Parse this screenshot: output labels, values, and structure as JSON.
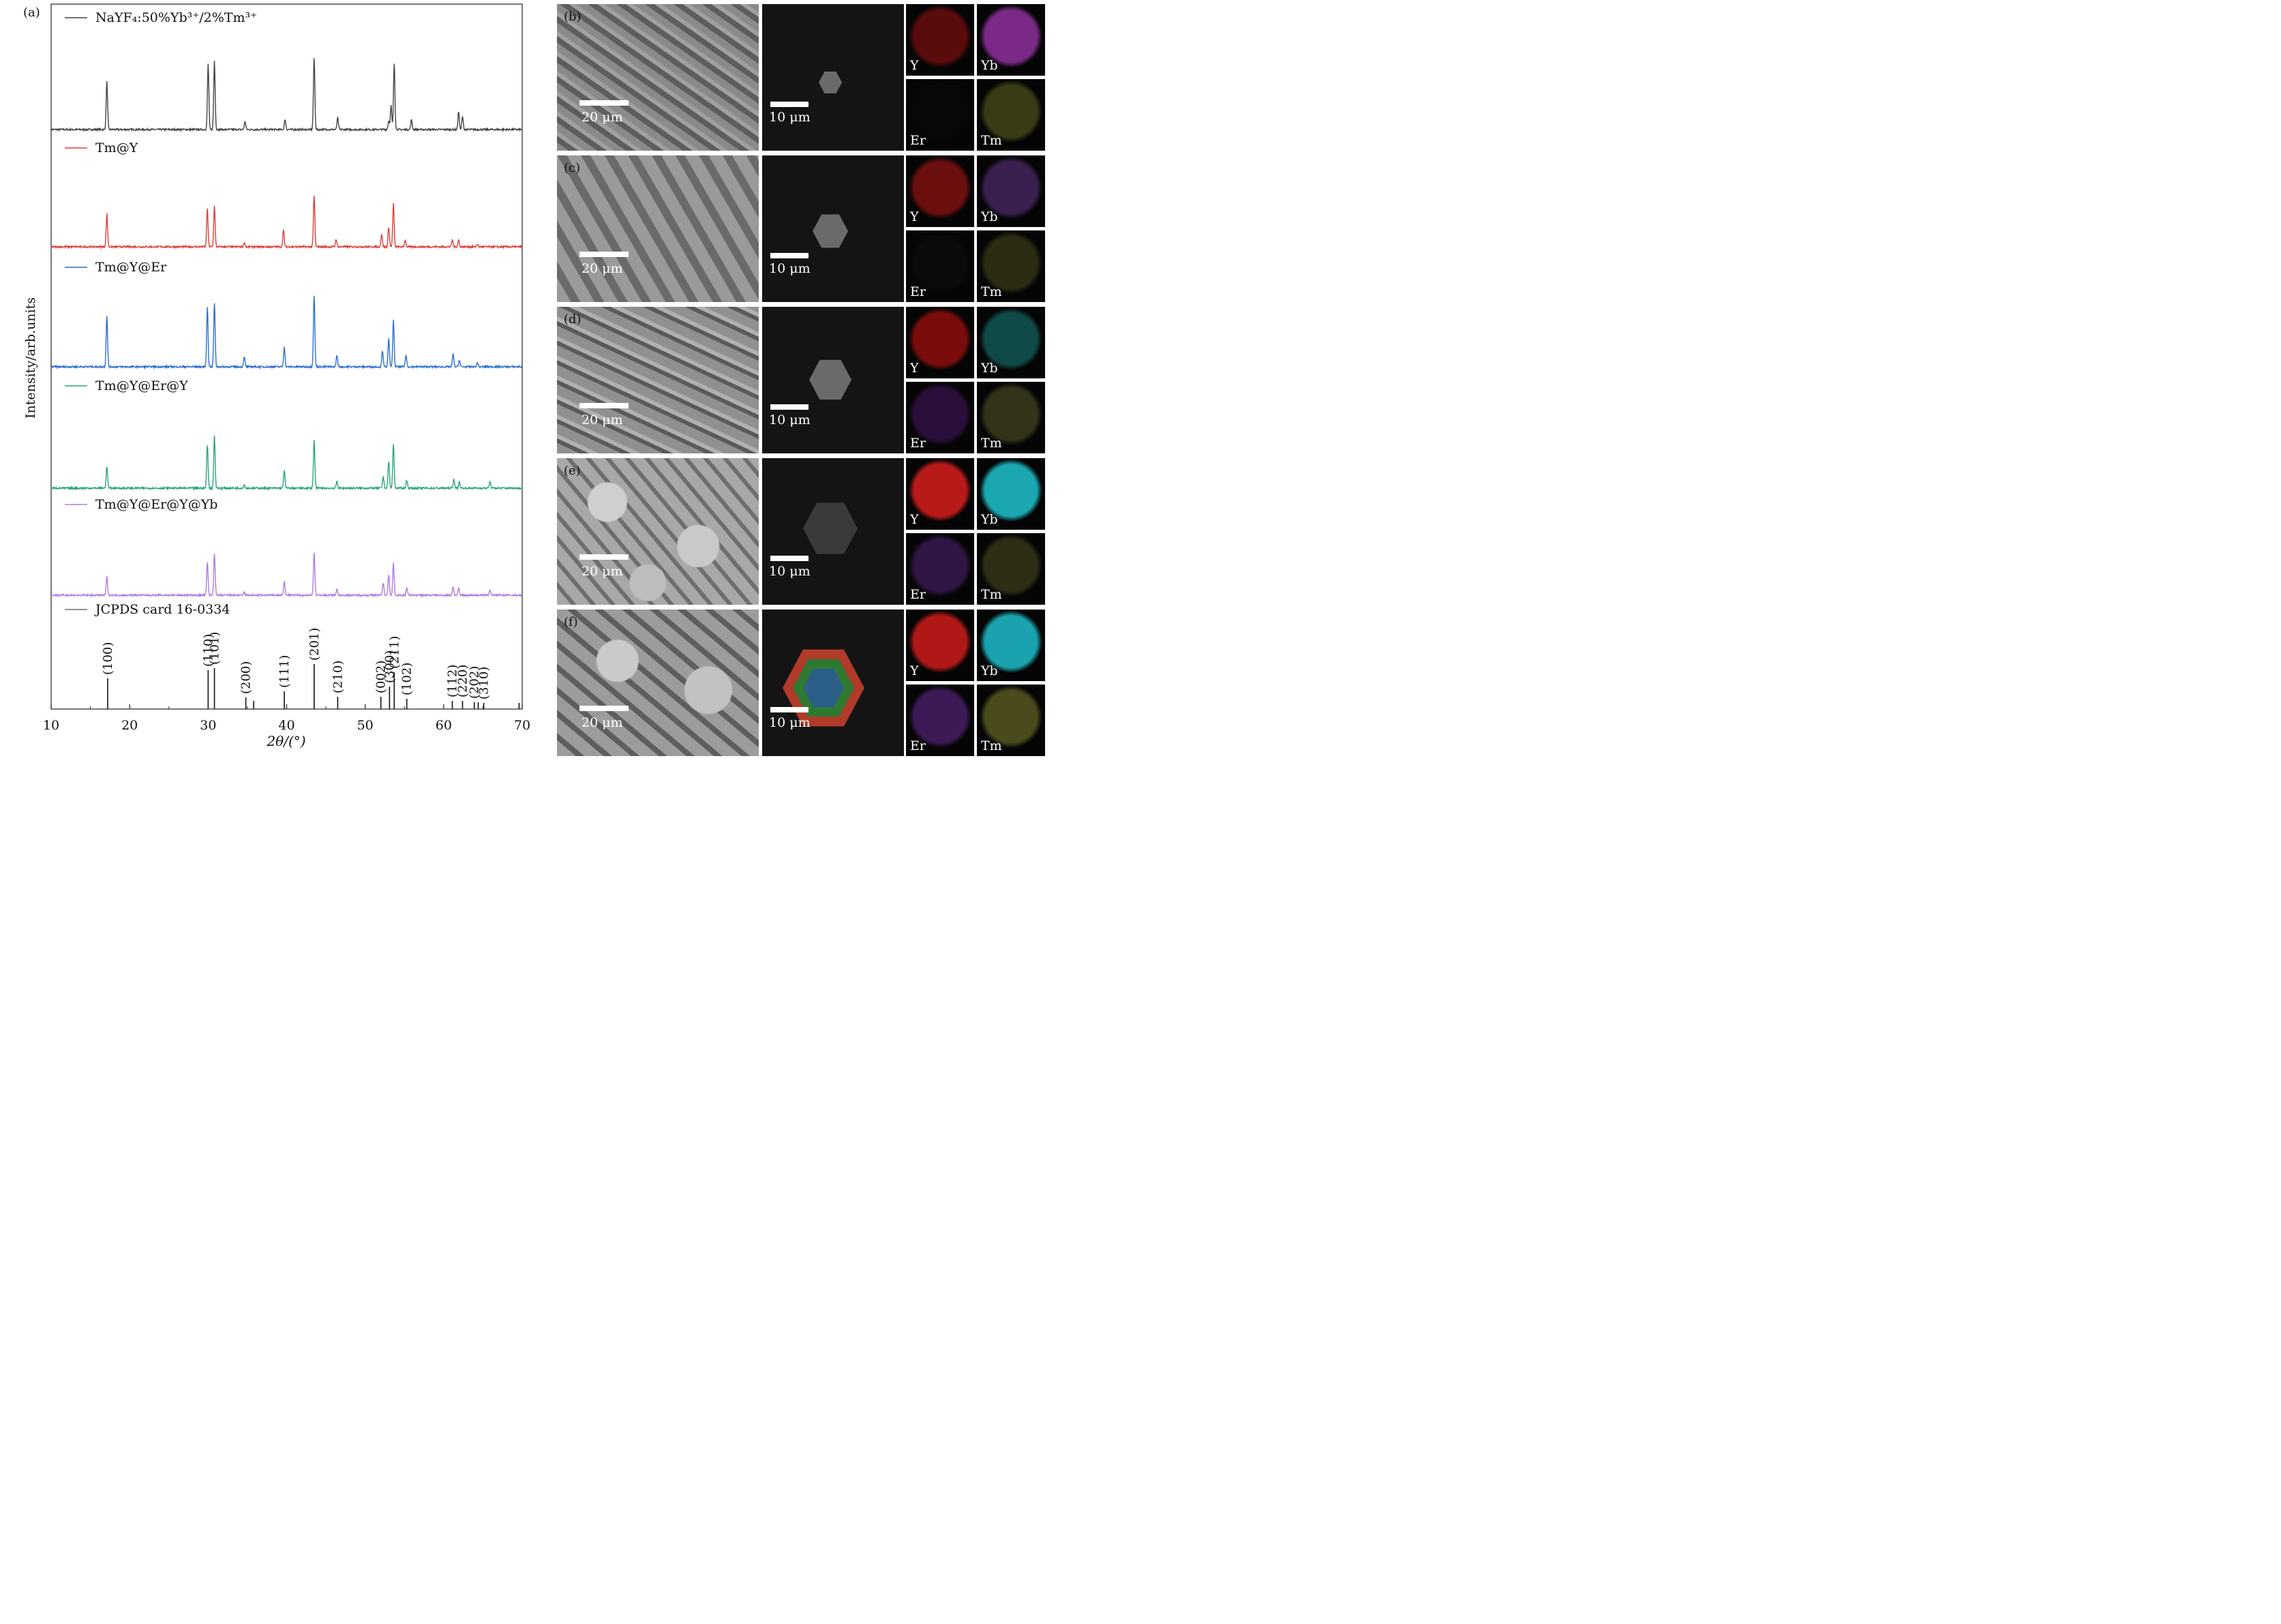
{
  "panel_a": {
    "label": "(a)",
    "ylabel": "Intensity/arb.units",
    "xlabel": "2θ/(°)"
  },
  "chart_data": {
    "type": "line",
    "xlim": [
      10,
      70
    ],
    "xticks": [
      10,
      20,
      30,
      40,
      50,
      60,
      70
    ],
    "grid": false,
    "series": [
      {
        "name": "NaYF₄:50%Yb³⁺/2%Tm³⁺",
        "color": "#444444",
        "peaks": [
          [
            17.1,
            70
          ],
          [
            30.0,
            96
          ],
          [
            30.8,
            101
          ],
          [
            34.7,
            12
          ],
          [
            39.8,
            15
          ],
          [
            43.5,
            105
          ],
          [
            46.5,
            17
          ],
          [
            53.0,
            13
          ],
          [
            53.3,
            35
          ],
          [
            53.7,
            97
          ],
          [
            55.9,
            14
          ],
          [
            61.9,
            26
          ],
          [
            62.4,
            19
          ]
        ]
      },
      {
        "name": "Tm@Y",
        "color": "#e0403a",
        "peaks": [
          [
            17.1,
            48
          ],
          [
            29.9,
            55
          ],
          [
            30.8,
            60
          ],
          [
            34.6,
            6
          ],
          [
            39.6,
            24
          ],
          [
            43.5,
            75
          ],
          [
            46.3,
            11
          ],
          [
            52.1,
            19
          ],
          [
            53.0,
            29
          ],
          [
            53.6,
            63
          ],
          [
            55.1,
            10
          ],
          [
            61.1,
            10
          ],
          [
            61.9,
            10
          ],
          [
            64.3,
            4
          ]
        ]
      },
      {
        "name": "Tm@Y@Er",
        "color": "#2d6fd1",
        "peaks": [
          [
            17.1,
            75
          ],
          [
            29.9,
            87
          ],
          [
            30.8,
            94
          ],
          [
            34.6,
            15
          ],
          [
            39.7,
            30
          ],
          [
            43.5,
            105
          ],
          [
            46.4,
            17
          ],
          [
            52.2,
            24
          ],
          [
            53.0,
            41
          ],
          [
            53.6,
            68
          ],
          [
            55.2,
            17
          ],
          [
            61.2,
            19
          ],
          [
            62.0,
            10
          ],
          [
            64.3,
            6
          ]
        ]
      },
      {
        "name": "Tm@Y@Er@Y",
        "color": "#2aa57e",
        "peaks": [
          [
            17.1,
            32
          ],
          [
            29.9,
            64
          ],
          [
            30.8,
            77
          ],
          [
            34.6,
            5
          ],
          [
            39.7,
            26
          ],
          [
            43.5,
            70
          ],
          [
            46.4,
            10
          ],
          [
            52.3,
            17
          ],
          [
            53.0,
            40
          ],
          [
            53.6,
            65
          ],
          [
            55.3,
            12
          ],
          [
            61.3,
            13
          ],
          [
            62.0,
            9
          ],
          [
            65.9,
            9
          ]
        ]
      },
      {
        "name": "Tm@Y@Er@Y@Yb",
        "color": "#b07be0",
        "peaks": [
          [
            17.1,
            27
          ],
          [
            29.9,
            48
          ],
          [
            30.8,
            62
          ],
          [
            34.6,
            4
          ],
          [
            39.7,
            20
          ],
          [
            43.5,
            63
          ],
          [
            46.4,
            9
          ],
          [
            52.3,
            18
          ],
          [
            53.0,
            30
          ],
          [
            53.6,
            47
          ],
          [
            55.3,
            11
          ],
          [
            61.2,
            12
          ],
          [
            61.9,
            10
          ],
          [
            65.9,
            8
          ]
        ]
      }
    ],
    "reference": {
      "name": "JCPDS card 16-0334",
      "color": "#6b6b6b",
      "lines": [
        {
          "x": 17.2,
          "h": 45,
          "label": "(100)"
        },
        {
          "x": 30.0,
          "h": 57,
          "label": "(110)"
        },
        {
          "x": 30.8,
          "h": 60,
          "label": "(101)"
        },
        {
          "x": 34.8,
          "h": 17,
          "label": "(200)"
        },
        {
          "x": 35.8,
          "h": 12,
          "label": ""
        },
        {
          "x": 39.7,
          "h": 26,
          "label": "(111)"
        },
        {
          "x": 43.5,
          "h": 66,
          "label": "(201)"
        },
        {
          "x": 46.5,
          "h": 18,
          "label": "(210)"
        },
        {
          "x": 52.0,
          "h": 18,
          "label": "(002)"
        },
        {
          "x": 53.1,
          "h": 33,
          "label": "(300)"
        },
        {
          "x": 53.7,
          "h": 54,
          "label": "(211)"
        },
        {
          "x": 55.3,
          "h": 15,
          "label": "(102)"
        },
        {
          "x": 61.1,
          "h": 12,
          "label": "(112)"
        },
        {
          "x": 62.4,
          "h": 12,
          "label": "(220)"
        },
        {
          "x": 63.9,
          "h": 10,
          "label": "(202)"
        },
        {
          "x": 64.4,
          "h": 10,
          "label": ""
        },
        {
          "x": 65.1,
          "h": 9,
          "label": "(310)"
        },
        {
          "x": 69.6,
          "h": 9,
          "label": ""
        }
      ]
    }
  },
  "rows": [
    {
      "label": "(b)",
      "sem_scale": "20 μm",
      "single_scale": "10 μm",
      "maps": [
        "Y",
        "Yb",
        "Er",
        "Tm"
      ],
      "map_colors": [
        "#5a0c0c",
        "#7a2a86",
        "#080808",
        "#3a3a14"
      ]
    },
    {
      "label": "(c)",
      "sem_scale": "20 μm",
      "single_scale": "10 μm",
      "maps": [
        "Y",
        "Yb",
        "Er",
        "Tm"
      ],
      "map_colors": [
        "#6a0e0e",
        "#3a2050",
        "#0a0a0a",
        "#2c2c12"
      ]
    },
    {
      "label": "(d)",
      "sem_scale": "20 μm",
      "single_scale": "10 μm",
      "maps": [
        "Y",
        "Yb",
        "Er",
        "Tm"
      ],
      "map_colors": [
        "#7a0c0c",
        "#0f4a48",
        "#2a0f3a",
        "#33331a"
      ]
    },
    {
      "label": "(e)",
      "sem_scale": "20 μm",
      "single_scale": "10 μm",
      "maps": [
        "Y",
        "Yb",
        "Er",
        "Tm"
      ],
      "map_colors": [
        "#b81a1a",
        "#1aa7b0",
        "#2f1645",
        "#2e2e16"
      ]
    },
    {
      "label": "(f)",
      "sem_scale": "20 μm",
      "single_scale": "10 μm",
      "maps": [
        "Y",
        "Yb",
        "Er",
        "Tm"
      ],
      "map_colors": [
        "#b01818",
        "#1aa3ae",
        "#3c1a55",
        "#4a4a1c"
      ]
    }
  ]
}
